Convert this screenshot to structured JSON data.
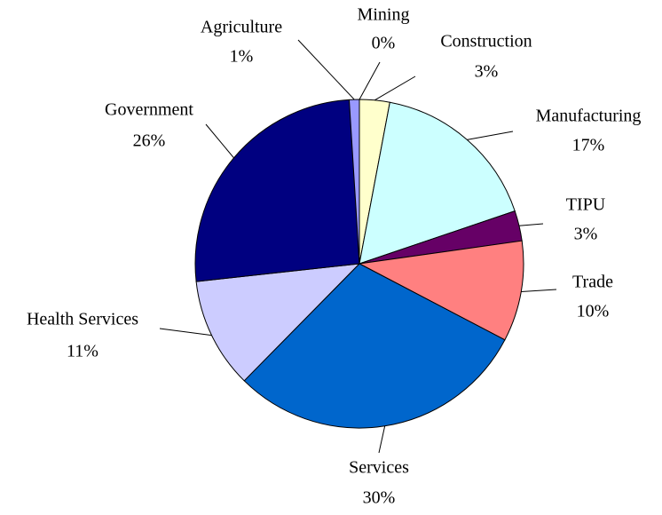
{
  "chart_data": {
    "type": "pie",
    "categories": [
      "Mining",
      "Construction",
      "Manufacturing",
      "TIPU",
      "Trade",
      "Services",
      "Health Services",
      "Government",
      "Agriculture"
    ],
    "values": [
      0,
      3,
      17,
      3,
      10,
      30,
      11,
      26,
      1
    ],
    "value_labels": [
      "0%",
      "3%",
      "17%",
      "3%",
      "10%",
      "30%",
      "11%",
      "26%",
      "1%"
    ],
    "colors": [
      "#000033",
      "#ffffcc",
      "#ccffff",
      "#660066",
      "#ff8080",
      "#0066cc",
      "#ccccff",
      "#000080",
      "#9999ff"
    ]
  }
}
